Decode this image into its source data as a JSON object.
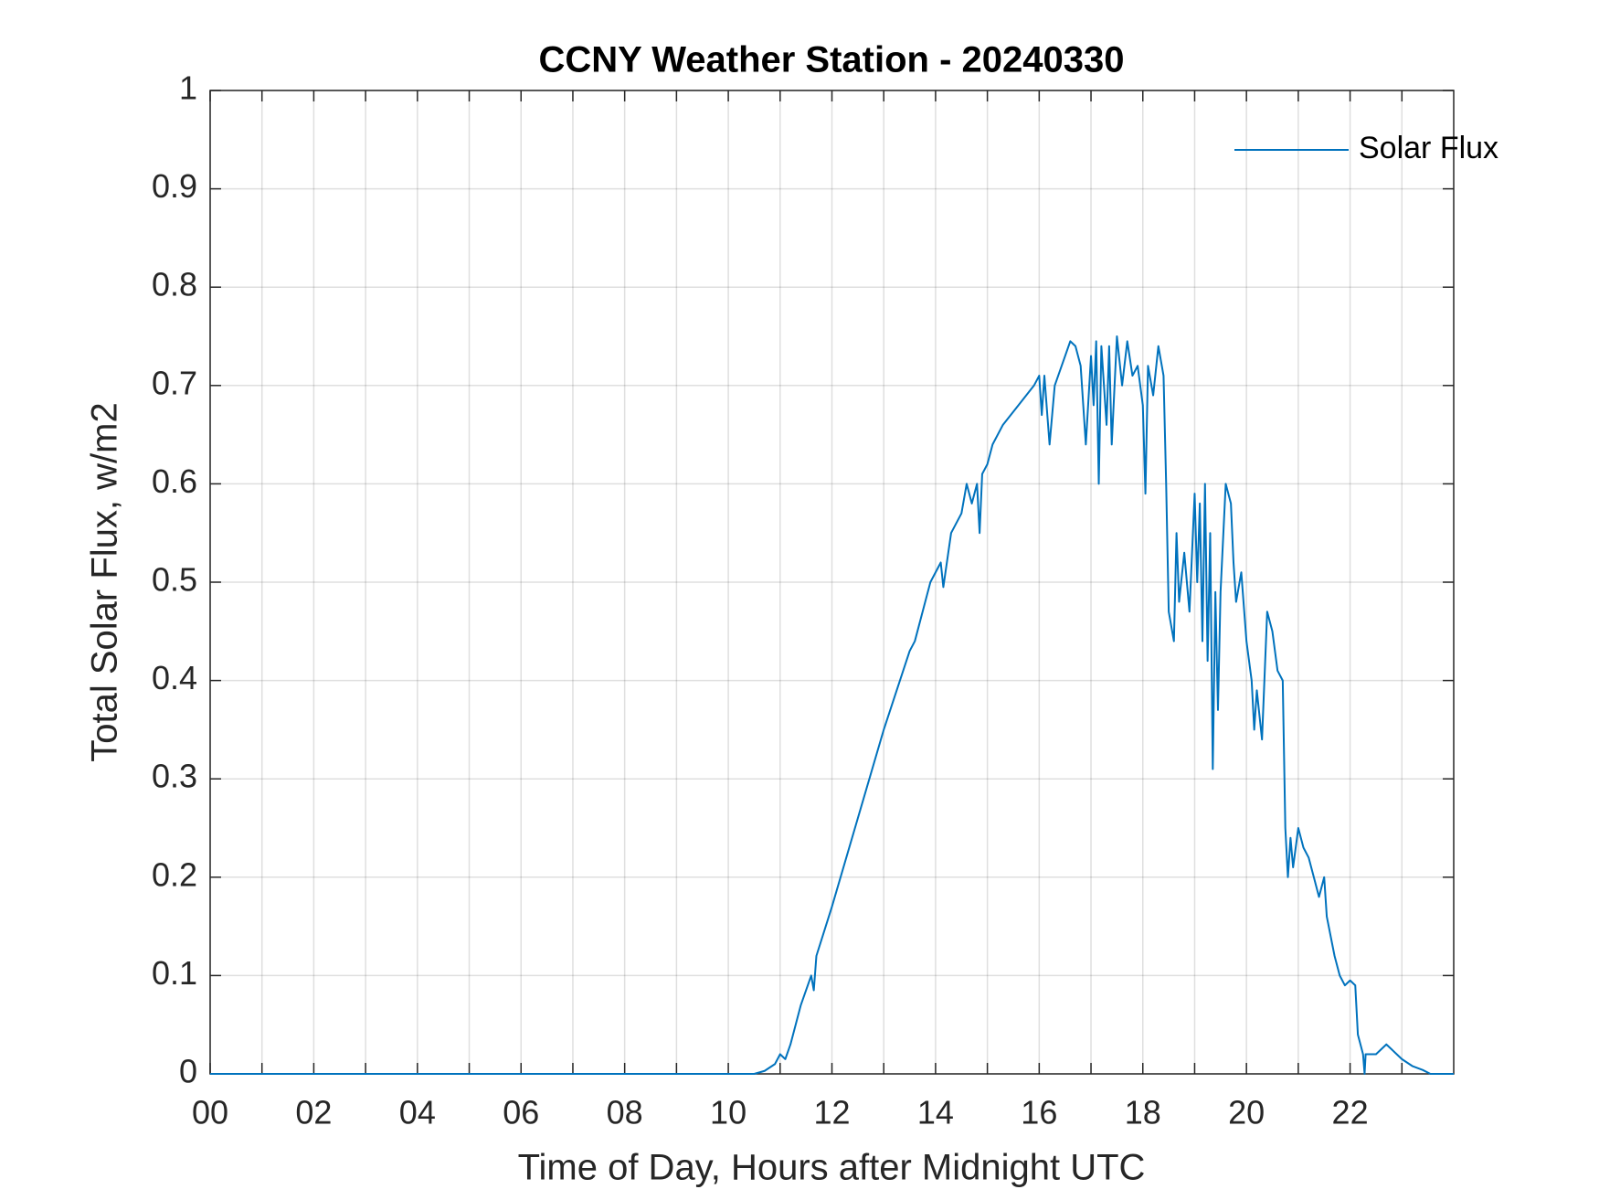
{
  "chart_data": {
    "type": "line",
    "title": "CCNY Weather Station - 20240330",
    "xlabel": "Time of Day, Hours after Midnight UTC",
    "ylabel": "Total Solar Flux, w/m2",
    "xlim": [
      0,
      24
    ],
    "xticks": [
      {
        "value": 0,
        "label": "00"
      },
      {
        "value": 2,
        "label": "02"
      },
      {
        "value": 4,
        "label": "04"
      },
      {
        "value": 6,
        "label": "06"
      },
      {
        "value": 8,
        "label": "08"
      },
      {
        "value": 10,
        "label": "10"
      },
      {
        "value": 12,
        "label": "12"
      },
      {
        "value": 14,
        "label": "14"
      },
      {
        "value": 16,
        "label": "16"
      },
      {
        "value": 18,
        "label": "18"
      },
      {
        "value": 20,
        "label": "20"
      },
      {
        "value": 22,
        "label": "22"
      }
    ],
    "xminorticks": [
      1,
      3,
      5,
      7,
      9,
      11,
      13,
      15,
      17,
      19,
      21,
      23
    ],
    "ylim": [
      0,
      1
    ],
    "yticks": [
      0,
      0.1,
      0.2,
      0.3,
      0.4,
      0.5,
      0.6,
      0.7,
      0.8,
      0.9,
      1
    ],
    "grid": true,
    "legend": "northeast",
    "x": [
      0,
      10.5,
      10.7,
      10.9,
      11.0,
      11.1,
      11.2,
      11.4,
      11.6,
      11.65,
      11.7,
      12.0,
      12.5,
      13.0,
      13.5,
      13.6,
      13.8,
      13.9,
      14.0,
      14.1,
      14.15,
      14.3,
      14.5,
      14.6,
      14.7,
      14.8,
      14.85,
      14.9,
      15.0,
      15.1,
      15.3,
      15.6,
      15.9,
      16.0,
      16.05,
      16.1,
      16.2,
      16.3,
      16.5,
      16.6,
      16.7,
      16.8,
      16.9,
      17.0,
      17.05,
      17.1,
      17.15,
      17.2,
      17.3,
      17.35,
      17.4,
      17.5,
      17.6,
      17.7,
      17.8,
      17.9,
      18.0,
      18.05,
      18.1,
      18.2,
      18.3,
      18.4,
      18.45,
      18.5,
      18.6,
      18.65,
      18.7,
      18.8,
      18.9,
      19.0,
      19.05,
      19.1,
      19.15,
      19.2,
      19.25,
      19.3,
      19.35,
      19.4,
      19.45,
      19.5,
      19.6,
      19.7,
      19.75,
      19.8,
      19.9,
      20.0,
      20.1,
      20.15,
      20.2,
      20.3,
      20.4,
      20.5,
      20.6,
      20.7,
      20.75,
      20.8,
      20.85,
      20.9,
      21.0,
      21.1,
      21.2,
      21.3,
      21.4,
      21.5,
      21.55,
      21.7,
      21.8,
      21.9,
      22.0,
      22.1,
      22.15,
      22.25,
      22.28,
      22.3,
      22.5,
      22.7,
      22.9,
      23.0,
      23.2,
      23.4,
      23.55,
      24.0
    ],
    "series": [
      {
        "name": "Solar Flux",
        "color": "#0072bd",
        "values": [
          0,
          0,
          0.003,
          0.01,
          0.02,
          0.015,
          0.03,
          0.07,
          0.1,
          0.085,
          0.12,
          0.17,
          0.26,
          0.35,
          0.43,
          0.44,
          0.48,
          0.5,
          0.51,
          0.52,
          0.495,
          0.55,
          0.57,
          0.6,
          0.58,
          0.6,
          0.55,
          0.61,
          0.62,
          0.64,
          0.66,
          0.68,
          0.7,
          0.71,
          0.67,
          0.71,
          0.64,
          0.7,
          0.73,
          0.745,
          0.74,
          0.72,
          0.64,
          0.73,
          0.68,
          0.745,
          0.6,
          0.74,
          0.66,
          0.74,
          0.64,
          0.75,
          0.7,
          0.745,
          0.71,
          0.72,
          0.68,
          0.59,
          0.72,
          0.69,
          0.74,
          0.71,
          0.6,
          0.47,
          0.44,
          0.55,
          0.48,
          0.53,
          0.47,
          0.59,
          0.5,
          0.58,
          0.44,
          0.6,
          0.42,
          0.55,
          0.31,
          0.49,
          0.37,
          0.49,
          0.6,
          0.58,
          0.52,
          0.48,
          0.51,
          0.44,
          0.4,
          0.35,
          0.39,
          0.34,
          0.47,
          0.45,
          0.41,
          0.4,
          0.25,
          0.2,
          0.24,
          0.21,
          0.25,
          0.23,
          0.22,
          0.2,
          0.18,
          0.2,
          0.16,
          0.12,
          0.1,
          0.09,
          0.095,
          0.09,
          0.04,
          0.02,
          0,
          0.02,
          0.02,
          0.03,
          0.02,
          0.015,
          0.008,
          0.004,
          0,
          0
        ]
      }
    ]
  }
}
